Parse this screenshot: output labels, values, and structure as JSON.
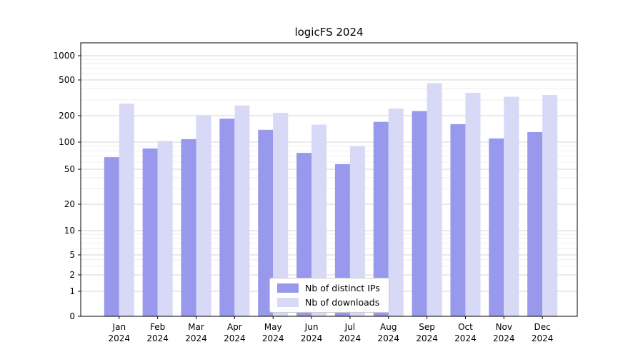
{
  "chart_data": {
    "type": "bar",
    "title": "logicFS 2024",
    "categories": [
      "Jan",
      "Feb",
      "Mar",
      "Apr",
      "May",
      "Jun",
      "Jul",
      "Aug",
      "Sep",
      "Oct",
      "Nov",
      "Dec"
    ],
    "year_label": "2024",
    "series": [
      {
        "name": "Nb of distinct IPs",
        "color": "#9898ec",
        "values": [
          68,
          85,
          108,
          185,
          138,
          76,
          57,
          170,
          225,
          160,
          110,
          130
        ]
      },
      {
        "name": "Nb of downloads",
        "color": "#d8d8f7",
        "values": [
          272,
          103,
          203,
          260,
          215,
          158,
          90,
          240,
          460,
          360,
          325,
          340
        ]
      }
    ],
    "y_ticks": [
      0,
      1,
      2,
      5,
      10,
      20,
      50,
      100,
      200,
      500,
      1000
    ],
    "y_minor_ticks": [
      3,
      4,
      6,
      7,
      8,
      9,
      30,
      40,
      60,
      70,
      80,
      90,
      300,
      400,
      600,
      700,
      800,
      900
    ],
    "y_scale": "log",
    "ylim": [
      0,
      1400
    ],
    "grid": true,
    "legend_position": "lower center",
    "colors": {
      "axis": "#000000",
      "major_grid": "#d4d4d4",
      "minor_grid": "#ebebeb",
      "background": "#ffffff"
    }
  }
}
